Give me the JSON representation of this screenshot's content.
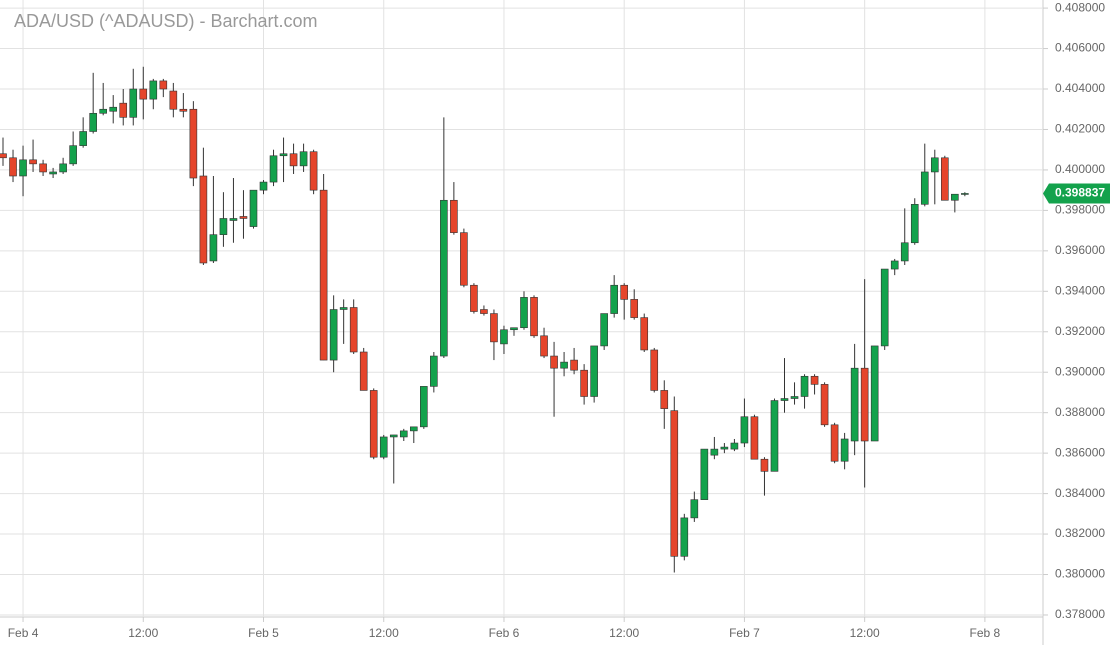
{
  "chart_data": {
    "type": "candlestick",
    "title": "ADA/USD (^ADAUSD) - Barchart.com",
    "up_color": "#13a24c",
    "down_color": "#e5452b",
    "grid": true,
    "open": [
      0.4008,
      0.4006,
      0.3997,
      0.4005,
      0.4003,
      0.3998,
      0.3999,
      0.4003,
      0.4012,
      0.4019,
      0.4028,
      0.4029,
      0.4033,
      0.4026,
      0.404,
      0.4035,
      0.4044,
      0.4039,
      0.403,
      0.403,
      0.3997,
      0.3955,
      0.3968,
      0.3975,
      0.3977,
      0.3972,
      0.399,
      0.3994,
      0.4007,
      0.4008,
      0.4002,
      0.4009,
      0.399,
      0.3906,
      0.3931,
      0.3932,
      0.391,
      0.3891,
      0.3858,
      0.3868,
      0.3868,
      0.3871,
      0.3873,
      0.3893,
      0.3908,
      0.3985,
      0.3969,
      0.3943,
      0.3931,
      0.3929,
      0.3914,
      0.3921,
      0.3922,
      0.3937,
      0.3918,
      0.3908,
      0.3902,
      0.3906,
      0.3901,
      0.3888,
      0.3913,
      0.3929,
      0.3943,
      0.3936,
      0.3927,
      0.3911,
      0.3891,
      0.3881,
      0.3809,
      0.3828,
      0.3837,
      0.3859,
      0.3862,
      0.3862,
      0.3865,
      0.3878,
      0.3857,
      0.3851,
      0.3886,
      0.3887,
      0.3888,
      0.3898,
      0.3894,
      0.3874,
      0.3856,
      0.3866,
      0.3902,
      0.3866,
      0.3913,
      0.3951,
      0.3955,
      0.3964,
      0.3983,
      0.3999,
      0.4006,
      0.3985,
      0.3988
    ],
    "high": [
      0.4016,
      0.401,
      0.4012,
      0.4015,
      0.4005,
      0.4001,
      0.4006,
      0.4019,
      0.4026,
      0.4048,
      0.4043,
      0.4037,
      0.404,
      0.405,
      0.4051,
      0.4045,
      0.4045,
      0.4043,
      0.4038,
      0.4034,
      0.4011,
      0.3997,
      0.3989,
      0.3996,
      0.399,
      0.399,
      0.3995,
      0.401,
      0.4016,
      0.4013,
      0.4013,
      0.401,
      0.3998,
      0.3938,
      0.3936,
      0.3936,
      0.3912,
      0.3892,
      0.3869,
      0.3869,
      0.3872,
      0.3873,
      0.3893,
      0.391,
      0.4026,
      0.3994,
      0.3971,
      0.3944,
      0.3933,
      0.3931,
      0.3923,
      0.3922,
      0.394,
      0.3938,
      0.3922,
      0.3915,
      0.391,
      0.3912,
      0.3904,
      0.3913,
      0.3929,
      0.3948,
      0.3944,
      0.3941,
      0.3929,
      0.3912,
      0.3896,
      0.3888,
      0.383,
      0.3841,
      0.3862,
      0.3868,
      0.3865,
      0.3867,
      0.3887,
      0.3879,
      0.3858,
      0.3887,
      0.3907,
      0.3895,
      0.3899,
      0.3899,
      0.3895,
      0.3875,
      0.387,
      0.3914,
      0.3946,
      0.3913,
      0.3951,
      0.3956,
      0.3981,
      0.3986,
      0.4013,
      0.401,
      0.4007,
      0.3988,
      0.3989
    ],
    "low": [
      0.4002,
      0.3994,
      0.3987,
      0.3999,
      0.3997,
      0.3996,
      0.3998,
      0.4002,
      0.4011,
      0.4018,
      0.4027,
      0.4023,
      0.4022,
      0.4022,
      0.4025,
      0.403,
      0.4036,
      0.4026,
      0.4026,
      0.3992,
      0.3953,
      0.3954,
      0.3962,
      0.3964,
      0.3966,
      0.3971,
      0.3988,
      0.3992,
      0.3994,
      0.3998,
      0.3999,
      0.3988,
      0.3906,
      0.39,
      0.3914,
      0.3909,
      0.3891,
      0.3857,
      0.3857,
      0.3845,
      0.3866,
      0.3865,
      0.3872,
      0.389,
      0.3907,
      0.3968,
      0.3942,
      0.3929,
      0.3928,
      0.3906,
      0.3909,
      0.3918,
      0.3921,
      0.3917,
      0.3907,
      0.3878,
      0.3898,
      0.3899,
      0.3884,
      0.3885,
      0.3911,
      0.3927,
      0.3926,
      0.3926,
      0.391,
      0.389,
      0.3872,
      0.3801,
      0.3807,
      0.3826,
      0.3837,
      0.3857,
      0.386,
      0.3861,
      0.3863,
      0.3857,
      0.3839,
      0.3851,
      0.388,
      0.3884,
      0.3882,
      0.3889,
      0.3873,
      0.3855,
      0.3852,
      0.3859,
      0.3843,
      0.3866,
      0.3911,
      0.3948,
      0.3953,
      0.3963,
      0.3982,
      0.3983,
      0.3985,
      0.3979,
      0.3987
    ],
    "close": [
      0.4006,
      0.3997,
      0.4005,
      0.4003,
      0.3999,
      0.3999,
      0.4003,
      0.4012,
      0.4019,
      0.4028,
      0.403,
      0.4031,
      0.4026,
      0.404,
      0.4035,
      0.4044,
      0.404,
      0.403,
      0.4029,
      0.3996,
      0.3954,
      0.3968,
      0.3976,
      0.3976,
      0.3976,
      0.399,
      0.3994,
      0.4007,
      0.4008,
      0.4002,
      0.4009,
      0.399,
      0.3906,
      0.3931,
      0.3932,
      0.391,
      0.3891,
      0.3858,
      0.3868,
      0.3869,
      0.3871,
      0.3873,
      0.3893,
      0.3908,
      0.3985,
      0.3969,
      0.3943,
      0.393,
      0.3929,
      0.3915,
      0.3921,
      0.3922,
      0.3937,
      0.3918,
      0.3908,
      0.3902,
      0.3905,
      0.3901,
      0.3888,
      0.3913,
      0.3929,
      0.3943,
      0.3936,
      0.3927,
      0.3911,
      0.3891,
      0.3882,
      0.3809,
      0.3828,
      0.3837,
      0.3862,
      0.3862,
      0.3863,
      0.3865,
      0.3878,
      0.3857,
      0.3851,
      0.3886,
      0.3887,
      0.3888,
      0.3898,
      0.3894,
      0.3874,
      0.3856,
      0.3867,
      0.3902,
      0.3866,
      0.3913,
      0.3951,
      0.3955,
      0.3964,
      0.3983,
      0.3999,
      0.4006,
      0.3985,
      0.3988,
      0.398837
    ],
    "last_price": 0.398837,
    "xlim": [
      -0.3,
      103.8
    ],
    "xticks": [
      {
        "value": 2,
        "label": "Feb 4"
      },
      {
        "value": 14,
        "label": "12:00"
      },
      {
        "value": 26,
        "label": "Feb 5"
      },
      {
        "value": 38,
        "label": "12:00"
      },
      {
        "value": 50,
        "label": "Feb 6"
      },
      {
        "value": 62,
        "label": "12:00"
      },
      {
        "value": 74,
        "label": "Feb 7"
      },
      {
        "value": 86,
        "label": "12:00"
      },
      {
        "value": 98,
        "label": "Feb 8"
      }
    ],
    "ylim": [
      0.3779,
      0.4084
    ],
    "yticks": [
      {
        "value": 0.378,
        "label": "0.378000"
      },
      {
        "value": 0.38,
        "label": "0.380000"
      },
      {
        "value": 0.382,
        "label": "0.382000"
      },
      {
        "value": 0.384,
        "label": "0.384000"
      },
      {
        "value": 0.386,
        "label": "0.386000"
      },
      {
        "value": 0.388,
        "label": "0.388000"
      },
      {
        "value": 0.39,
        "label": "0.390000"
      },
      {
        "value": 0.392,
        "label": "0.392000"
      },
      {
        "value": 0.394,
        "label": "0.394000"
      },
      {
        "value": 0.396,
        "label": "0.396000"
      },
      {
        "value": 0.398,
        "label": "0.398000"
      },
      {
        "value": 0.4,
        "label": "0.400000"
      },
      {
        "value": 0.402,
        "label": "0.402000"
      },
      {
        "value": 0.404,
        "label": "0.404000"
      },
      {
        "value": 0.406,
        "label": "0.406000"
      },
      {
        "value": 0.408,
        "label": "0.408000"
      }
    ]
  }
}
